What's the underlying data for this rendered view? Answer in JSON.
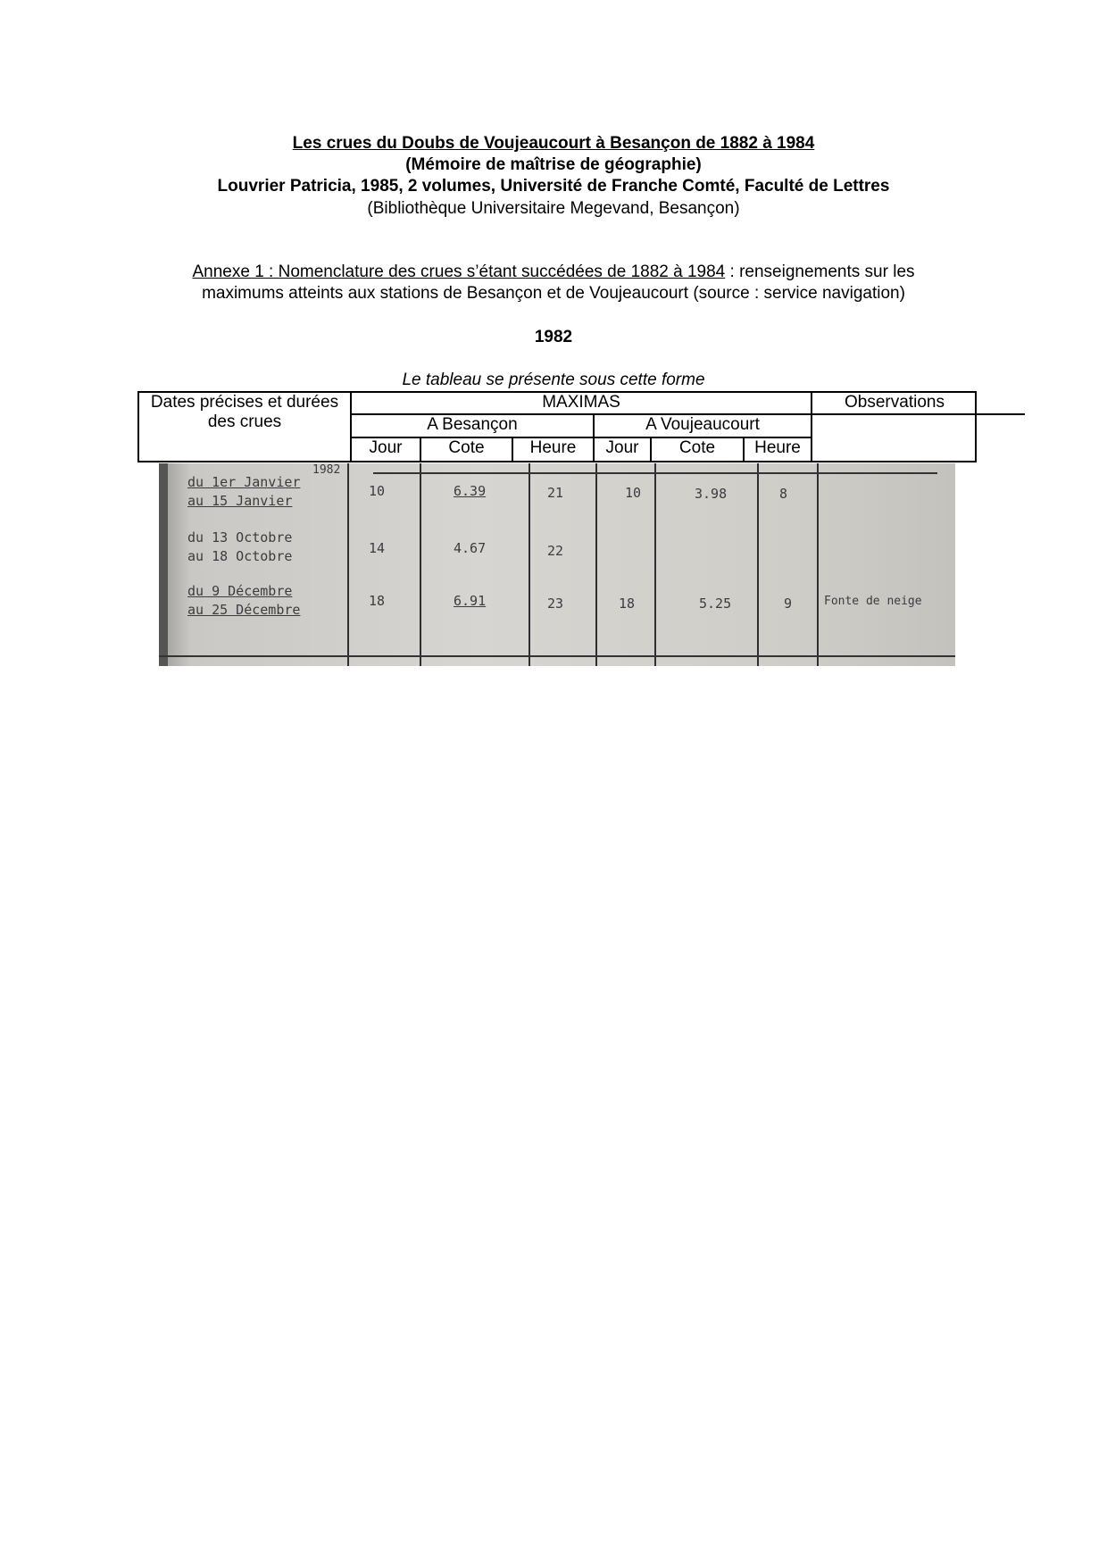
{
  "header": {
    "title": "Les crues du Doubs de Voujeaucourt à Besançon de 1882 à 1984",
    "subtitle": "(Mémoire de maîtrise de géographie)",
    "author_line": "Louvrier Patricia, 1985, 2 volumes, Université de Franche Comté, Faculté de Lettres",
    "library": "(Bibliothèque Universitaire Megevand, Besançon)"
  },
  "annex": {
    "title": "Annexe 1 : Nomenclature des crues s’étant succédées de 1882 à 1984",
    "rest_line1": " : renseignements sur les",
    "line2": "maximums atteints aux stations de Besançon et de Voujeaucourt (source : service navigation)"
  },
  "year": "1982",
  "caption": "Le tableau se présente sous cette forme",
  "table_header": {
    "dates": "Dates précises et durées des crues",
    "maximas": "MAXIMAS",
    "observations": "Observations",
    "besancon": "A Besançon",
    "voujeaucourt": "A Voujeaucourt",
    "cols": [
      "Jour",
      "Cote",
      "Heure",
      "Jour",
      "Cote",
      "Heure"
    ]
  },
  "scan": {
    "year_note": "1982",
    "rows": [
      {
        "from": "du 1er Janvier",
        "to": "au 15  Janvier",
        "b_jour": "10",
        "b_cote": "6.39",
        "b_heure": "21",
        "v_jour": "10",
        "v_cote": "3.98",
        "v_heure": "8",
        "obs": ""
      },
      {
        "from": "du 13 Octobre",
        "to": "au 18 Octobre",
        "b_jour": "14",
        "b_cote": "4.67",
        "b_heure": "22",
        "v_jour": "",
        "v_cote": "",
        "v_heure": "",
        "obs": ""
      },
      {
        "from": "du 9 Décembre",
        "to": "au 25 Décembre",
        "b_jour": "18",
        "b_cote": "6.91",
        "b_heure": "23",
        "v_jour": "18",
        "v_cote": "5.25",
        "v_heure": "9",
        "obs": "Fonte de neige"
      }
    ]
  }
}
